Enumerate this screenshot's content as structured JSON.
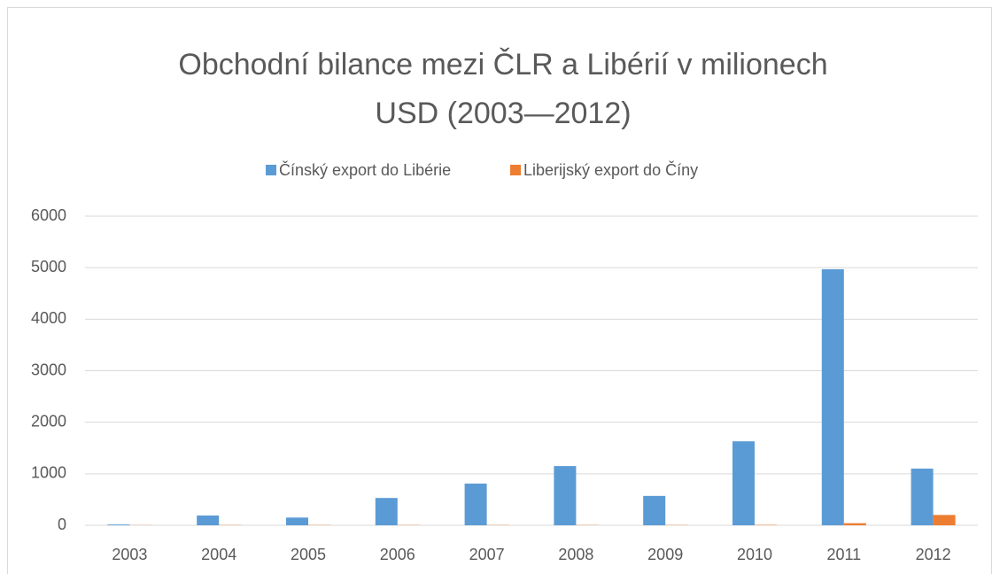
{
  "chart_data": {
    "type": "bar",
    "title": [
      "Obchodní bilance mezi ČLR a Libérií v milionech",
      "USD (2003—2012)"
    ],
    "categories": [
      "2003",
      "2004",
      "2005",
      "2006",
      "2007",
      "2008",
      "2009",
      "2010",
      "2011",
      "2012"
    ],
    "series": [
      {
        "name": "Čínský export do Libérie",
        "color": "#5b9bd5",
        "values": [
          15,
          190,
          150,
          530,
          810,
          1150,
          570,
          1630,
          4970,
          1100
        ]
      },
      {
        "name": "Liberijský export do Číny",
        "color": "#ed7d31",
        "values": [
          3,
          5,
          5,
          5,
          5,
          5,
          5,
          8,
          40,
          200
        ]
      }
    ],
    "ylim": [
      0,
      6000
    ],
    "yticks": [
      0,
      1000,
      2000,
      3000,
      4000,
      5000,
      6000
    ],
    "grid": true,
    "legend": "top"
  }
}
